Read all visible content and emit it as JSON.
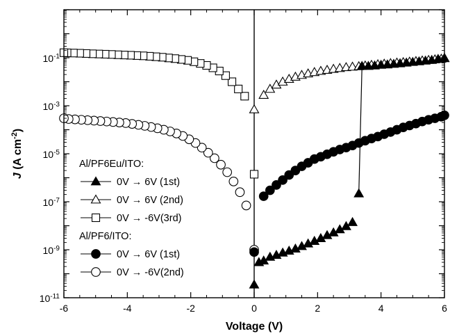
{
  "chart_data": {
    "type": "scatter",
    "title": "",
    "xlabel": "Voltage (V)",
    "ylabel": {
      "italic": "J",
      "main": " (A cm",
      "sup": "-2",
      "close": ")"
    },
    "xlim": [
      -6,
      6
    ],
    "ylim_log10": [
      -11,
      1
    ],
    "x_scale": "linear",
    "y_scale": "log",
    "x_ticks": [
      "-6",
      "-4",
      "-2",
      "0",
      "2",
      "4",
      "6"
    ],
    "y_ticks": [
      {
        "exp": "-11",
        "base": "10"
      },
      {
        "exp": "-9",
        "base": "10"
      },
      {
        "exp": "-7",
        "base": "10"
      },
      {
        "exp": "-5",
        "base": "10"
      },
      {
        "exp": "-3",
        "base": "10"
      },
      {
        "exp": "-1",
        "base": "10"
      }
    ],
    "grid": false,
    "legend_position": "left-center",
    "legend_groups": [
      {
        "title": "Al/PF6Eu/ITO:",
        "series": [
          0,
          1,
          2
        ]
      },
      {
        "title": "Al/PF6/ITO:",
        "series": [
          3,
          4
        ]
      }
    ],
    "series": [
      {
        "name": "0V → 6V (1st)",
        "marker": "filled-triangle",
        "points": [
          [
            0.0,
            3.5e-11
          ],
          [
            0.15,
            3e-10
          ],
          [
            0.3,
            3.5e-10
          ],
          [
            0.5,
            5e-10
          ],
          [
            0.7,
            6e-10
          ],
          [
            0.9,
            7.5e-10
          ],
          [
            1.1,
            9e-10
          ],
          [
            1.3,
            1.1e-09
          ],
          [
            1.5,
            1.4e-09
          ],
          [
            1.7,
            1.8e-09
          ],
          [
            1.9,
            2.3e-09
          ],
          [
            2.1,
            3e-09
          ],
          [
            2.3,
            4e-09
          ],
          [
            2.5,
            5.2e-09
          ],
          [
            2.7,
            7e-09
          ],
          [
            2.9,
            9.5e-09
          ],
          [
            3.1,
            1.4e-08
          ],
          [
            3.3,
            2.2e-07
          ],
          [
            3.4,
            0.045
          ],
          [
            3.6,
            0.045
          ],
          [
            3.8,
            0.047
          ],
          [
            4.0,
            0.05
          ],
          [
            4.2,
            0.052
          ],
          [
            4.4,
            0.055
          ],
          [
            4.6,
            0.058
          ],
          [
            4.8,
            0.062
          ],
          [
            5.0,
            0.066
          ],
          [
            5.2,
            0.07
          ],
          [
            5.4,
            0.075
          ],
          [
            5.6,
            0.08
          ],
          [
            5.8,
            0.088
          ],
          [
            6.0,
            0.098
          ]
        ]
      },
      {
        "name": "0V → 6V (2nd)",
        "marker": "open-triangle",
        "points": [
          [
            0.0,
            0.0007
          ],
          [
            0.3,
            0.0028
          ],
          [
            0.5,
            0.005
          ],
          [
            0.7,
            0.0075
          ],
          [
            0.9,
            0.01
          ],
          [
            1.1,
            0.013
          ],
          [
            1.3,
            0.016
          ],
          [
            1.5,
            0.019
          ],
          [
            1.7,
            0.022
          ],
          [
            1.9,
            0.025
          ],
          [
            2.1,
            0.028
          ],
          [
            2.3,
            0.031
          ],
          [
            2.5,
            0.034
          ],
          [
            2.7,
            0.037
          ],
          [
            2.9,
            0.04
          ],
          [
            3.1,
            0.042
          ],
          [
            3.3,
            0.044
          ],
          [
            3.5,
            0.047
          ],
          [
            3.7,
            0.05
          ],
          [
            3.9,
            0.053
          ],
          [
            4.1,
            0.056
          ],
          [
            4.3,
            0.059
          ],
          [
            4.5,
            0.062
          ],
          [
            4.7,
            0.065
          ],
          [
            4.9,
            0.068
          ],
          [
            5.1,
            0.072
          ],
          [
            5.3,
            0.076
          ],
          [
            5.5,
            0.08
          ],
          [
            5.7,
            0.085
          ],
          [
            5.9,
            0.09
          ],
          [
            6.0,
            0.095
          ]
        ]
      },
      {
        "name": "0V → -6V(3rd)",
        "marker": "open-square",
        "points": [
          [
            0.0,
            1.4e-06
          ],
          [
            -0.3,
            0.0025
          ],
          [
            -0.5,
            0.005
          ],
          [
            -0.7,
            0.01
          ],
          [
            -0.9,
            0.018
          ],
          [
            -1.1,
            0.028
          ],
          [
            -1.3,
            0.038
          ],
          [
            -1.5,
            0.048
          ],
          [
            -1.7,
            0.058
          ],
          [
            -1.9,
            0.068
          ],
          [
            -2.1,
            0.078
          ],
          [
            -2.3,
            0.085
          ],
          [
            -2.5,
            0.092
          ],
          [
            -2.7,
            0.098
          ],
          [
            -2.9,
            0.105
          ],
          [
            -3.1,
            0.11
          ],
          [
            -3.3,
            0.115
          ],
          [
            -3.5,
            0.12
          ],
          [
            -3.7,
            0.123
          ],
          [
            -3.9,
            0.127
          ],
          [
            -4.1,
            0.13
          ],
          [
            -4.3,
            0.133
          ],
          [
            -4.5,
            0.137
          ],
          [
            -4.7,
            0.14
          ],
          [
            -4.9,
            0.143
          ],
          [
            -5.1,
            0.146
          ],
          [
            -5.3,
            0.15
          ],
          [
            -5.5,
            0.154
          ],
          [
            -5.7,
            0.157
          ],
          [
            -5.9,
            0.16
          ],
          [
            -6.0,
            0.162
          ]
        ]
      },
      {
        "name": "0V → 6V (1st)",
        "marker": "filled-circle",
        "points": [
          [
            0.0,
            8e-10
          ],
          [
            0.3,
            1.7e-07
          ],
          [
            0.5,
            3e-07
          ],
          [
            0.7,
            5e-07
          ],
          [
            0.9,
            8e-07
          ],
          [
            1.1,
            1.3e-06
          ],
          [
            1.3,
            2e-06
          ],
          [
            1.5,
            3e-06
          ],
          [
            1.7,
            4.2e-06
          ],
          [
            1.9,
            6e-06
          ],
          [
            2.1,
            7.5e-06
          ],
          [
            2.3,
            9.5e-06
          ],
          [
            2.5,
            1.2e-05
          ],
          [
            2.7,
            1.5e-05
          ],
          [
            2.9,
            1.8e-05
          ],
          [
            3.1,
            2.2e-05
          ],
          [
            3.3,
            2.8e-05
          ],
          [
            3.5,
            3.5e-05
          ],
          [
            3.7,
            4.3e-05
          ],
          [
            3.9,
            5.2e-05
          ],
          [
            4.1,
            6.5e-05
          ],
          [
            4.3,
            8e-05
          ],
          [
            4.5,
            0.0001
          ],
          [
            4.7,
            0.000125
          ],
          [
            4.9,
            0.00015
          ],
          [
            5.1,
            0.00018
          ],
          [
            5.3,
            0.00022
          ],
          [
            5.5,
            0.00026
          ],
          [
            5.7,
            0.0003
          ],
          [
            5.9,
            0.00035
          ],
          [
            6.0,
            0.0004
          ]
        ]
      },
      {
        "name": "0V → -6V(2nd)",
        "marker": "open-circle",
        "points": [
          [
            0.0,
            1e-09
          ],
          [
            -0.25,
            7e-08
          ],
          [
            -0.45,
            2.5e-07
          ],
          [
            -0.65,
            7e-07
          ],
          [
            -0.85,
            1.7e-06
          ],
          [
            -1.05,
            3.5e-06
          ],
          [
            -1.25,
            6.5e-06
          ],
          [
            -1.45,
            1.1e-05
          ],
          [
            -1.65,
            1.8e-05
          ],
          [
            -1.85,
            2.8e-05
          ],
          [
            -2.05,
            4e-05
          ],
          [
            -2.25,
            5.5e-05
          ],
          [
            -2.45,
            7e-05
          ],
          [
            -2.65,
            8.5e-05
          ],
          [
            -2.85,
            0.0001
          ],
          [
            -3.05,
            0.000115
          ],
          [
            -3.25,
            0.00013
          ],
          [
            -3.45,
            0.000145
          ],
          [
            -3.65,
            0.00016
          ],
          [
            -3.85,
            0.000175
          ],
          [
            -4.05,
            0.00019
          ],
          [
            -4.25,
            0.0002
          ],
          [
            -4.45,
            0.00021
          ],
          [
            -4.65,
            0.00022
          ],
          [
            -4.85,
            0.00023
          ],
          [
            -5.05,
            0.00024
          ],
          [
            -5.25,
            0.00025
          ],
          [
            -5.45,
            0.00026
          ],
          [
            -5.65,
            0.00027
          ],
          [
            -5.85,
            0.00028
          ],
          [
            -6.0,
            0.0003
          ]
        ]
      }
    ],
    "vertical_line_x": 0,
    "jump_line": {
      "x": [
        3.3,
        3.4
      ],
      "y": [
        2.2e-07,
        0.045
      ]
    }
  }
}
